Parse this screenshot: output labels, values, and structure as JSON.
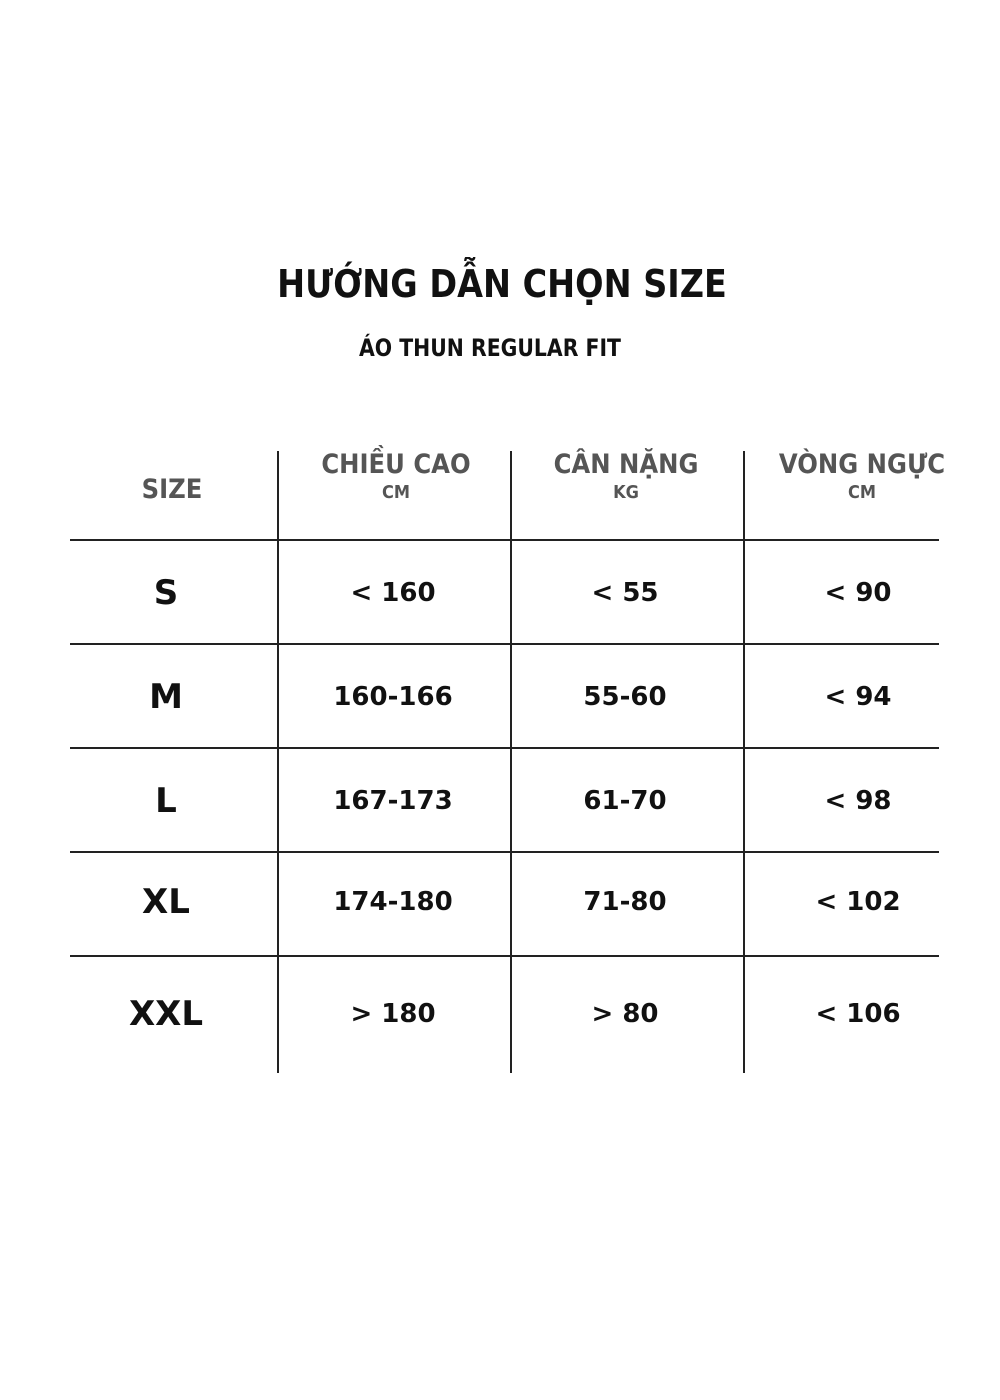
{
  "title": "HƯỚNG DẪN CHỌN SIZE",
  "subtitle": "ÁO THUN REGULAR FIT",
  "table": {
    "headers": [
      {
        "label": "SIZE",
        "unit": ""
      },
      {
        "label": "CHIỀU CAO",
        "unit": "CM"
      },
      {
        "label": "CÂN NẶNG",
        "unit": "KG"
      },
      {
        "label": "VÒNG NGỰC",
        "unit": "CM"
      }
    ],
    "rows": [
      [
        "S",
        "< 160",
        "< 55",
        "< 90"
      ],
      [
        "M",
        "160-166",
        "55-60",
        "< 94"
      ],
      [
        "L",
        "167-173",
        "61-70",
        "< 98"
      ],
      [
        "XL",
        "174-180",
        "71-80",
        "< 102"
      ],
      [
        "XXL",
        "> 180",
        "> 80",
        "< 106"
      ]
    ]
  }
}
